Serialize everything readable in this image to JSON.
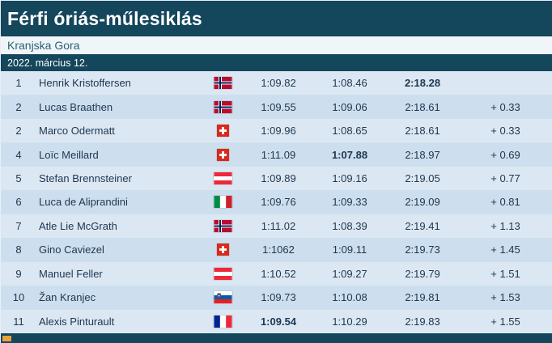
{
  "header": {
    "title": "Férfi óriás-műlesiklás"
  },
  "location": "Kranjska Gora",
  "date": "2022. március 12.",
  "table": {
    "rows": [
      {
        "rank": "1",
        "name": "Henrik Kristoffersen",
        "country": "NOR",
        "run1": "1:09.82",
        "run2": "1:08.46",
        "total": "2:18.28",
        "diff": "",
        "bold": "total"
      },
      {
        "rank": "2",
        "name": "Lucas Braathen",
        "country": "NOR",
        "run1": "1:09.55",
        "run2": "1:09.06",
        "total": "2:18.61",
        "diff": "+ 0.33",
        "bold": ""
      },
      {
        "rank": "2",
        "name": "Marco Odermatt",
        "country": "SUI",
        "run1": "1:09.96",
        "run2": "1:08.65",
        "total": "2:18.61",
        "diff": "+ 0.33",
        "bold": ""
      },
      {
        "rank": "4",
        "name": "Loïc Meillard",
        "country": "SUI",
        "run1": "1:11.09",
        "run2": "1:07.88",
        "total": "2:18.97",
        "diff": "+ 0.69",
        "bold": "run2"
      },
      {
        "rank": "5",
        "name": "Stefan Brennsteiner",
        "country": "AUT",
        "run1": "1:09.89",
        "run2": "1:09.16",
        "total": "2:19.05",
        "diff": "+ 0.77",
        "bold": ""
      },
      {
        "rank": "6",
        "name": "Luca de Aliprandini",
        "country": "ITA",
        "run1": "1:09.76",
        "run2": "1:09.33",
        "total": "2:19.09",
        "diff": "+ 0.81",
        "bold": ""
      },
      {
        "rank": "7",
        "name": "Atle Lie McGrath",
        "country": "NOR",
        "run1": "1:11.02",
        "run2": "1:08.39",
        "total": "2:19.41",
        "diff": "+ 1.13",
        "bold": ""
      },
      {
        "rank": "8",
        "name": "Gino Caviezel",
        "country": "SUI",
        "run1": "1:1062",
        "run2": "1:09.11",
        "total": "2:19.73",
        "diff": "+ 1.45",
        "bold": ""
      },
      {
        "rank": "9",
        "name": "Manuel Feller",
        "country": "AUT",
        "run1": "1:10.52",
        "run2": "1:09.27",
        "total": "2:19.79",
        "diff": "+ 1.51",
        "bold": ""
      },
      {
        "rank": "10",
        "name": "Žan Kranjec",
        "country": "SLO",
        "run1": "1:09.73",
        "run2": "1:10.08",
        "total": "2:19.81",
        "diff": "+ 1.53",
        "bold": ""
      },
      {
        "rank": "11",
        "name": "Alexis Pinturault",
        "country": "FRA",
        "run1": "1:09.54",
        "run2": "1:10.29",
        "total": "2:19.83",
        "diff": "+ 1.55",
        "bold": "run1"
      }
    ]
  },
  "colors": {
    "header_bg": "#14465c",
    "location_bg": "#f0f5fa",
    "row_odd": "#dbe8f3",
    "row_even": "#cddfee",
    "text": "#1e3650",
    "accent": "#e8a33d"
  }
}
